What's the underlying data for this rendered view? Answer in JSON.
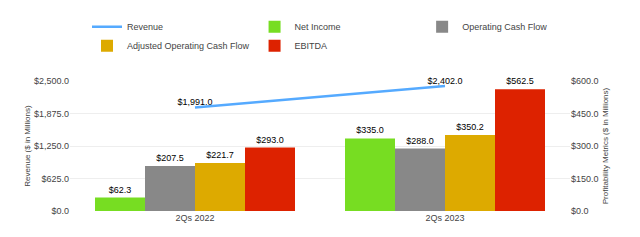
{
  "chart_data": {
    "type": "bar",
    "categories": [
      "2Qs 2022",
      "2Qs 2023"
    ],
    "series": [
      {
        "name": "Revenue",
        "type": "line",
        "axis": "y",
        "color": "#55aaff",
        "values": [
          1991.0,
          2402.0
        ],
        "value_labels": [
          "$1,991.0",
          "$2,402.0"
        ]
      },
      {
        "name": "Net Income",
        "type": "bar",
        "axis": "y2",
        "color": "#77dd22",
        "values": [
          62.3,
          335.0
        ],
        "value_labels": [
          "$62.3",
          "$335.0"
        ]
      },
      {
        "name": "Operating Cash Flow",
        "type": "bar",
        "axis": "y2",
        "color": "#888888",
        "values": [
          207.5,
          288.0
        ],
        "value_labels": [
          "$207.5",
          "$288.0"
        ]
      },
      {
        "name": "Adjusted Operating Cash Flow",
        "type": "bar",
        "axis": "y2",
        "color": "#ddaa00",
        "values": [
          221.7,
          350.2
        ],
        "value_labels": [
          "$221.7",
          "$350.2"
        ]
      },
      {
        "name": "EBITDA",
        "type": "bar",
        "axis": "y2",
        "color": "#dd2200",
        "values": [
          293.0,
          562.5
        ],
        "value_labels": [
          "$293.0",
          "$562.5"
        ]
      }
    ],
    "y_label": "Revenue ($ in Millions)",
    "y2_label": "Profitability Metrics ($ in Millions)",
    "ylim": [
      0,
      2500
    ],
    "yticks": [
      {
        "value": 0,
        "label": "$0.0"
      },
      {
        "value": 625,
        "label": "$625.0"
      },
      {
        "value": 1250,
        "label": "$1,250.0"
      },
      {
        "value": 1875,
        "label": "$1,875.0"
      },
      {
        "value": 2500,
        "label": "$2,500.0"
      }
    ],
    "y2lim": [
      0,
      600
    ],
    "y2ticks": [
      {
        "value": 0,
        "label": "$0.0"
      },
      {
        "value": 150,
        "label": "$150.0"
      },
      {
        "value": 300,
        "label": "$300.0"
      },
      {
        "value": 450,
        "label": "$450.0"
      },
      {
        "value": 600,
        "label": "$600.0"
      }
    ],
    "grid": true,
    "legend": "top",
    "data_labels": true
  }
}
